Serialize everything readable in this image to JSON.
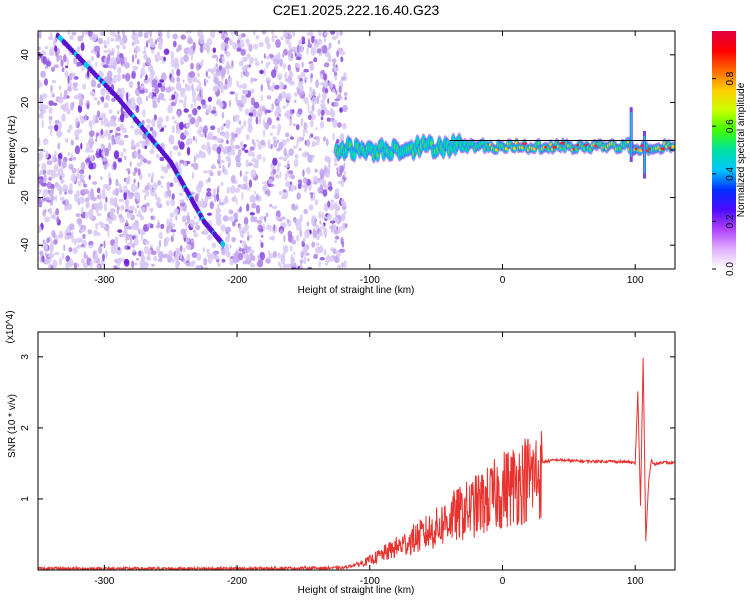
{
  "title": "C2E1.2025.222.16.40.G23",
  "colors": {
    "spectrogram_band": "#6a1bd8",
    "spectrogram_light": "#c9b2ee",
    "snr_line": "#e8322e",
    "colorbar": [
      "#ffffff",
      "#e0b0ff",
      "#b040ff",
      "#4b0aff",
      "#0030ff",
      "#00c8ff",
      "#00e0a0",
      "#40ff00",
      "#c8ff00",
      "#ffd000",
      "#ff6a00",
      "#ff0000",
      "#e00040"
    ]
  },
  "chart_data": [
    {
      "type": "heatmap",
      "xlabel": "Height of straight line (km)",
      "ylabel": "Frequency (Hz)",
      "xlim": [
        -350,
        130
      ],
      "ylim": [
        -50,
        50
      ],
      "xticks": [
        -300,
        -200,
        -100,
        0,
        100
      ],
      "yticks": [
        -40,
        -20,
        0,
        20,
        40
      ],
      "colorbar": {
        "label": "Normalized spectral amplitude",
        "range": [
          0,
          1
        ],
        "ticks": [
          "0.0",
          "0.2",
          "0.4",
          "0.6",
          "0.8"
        ]
      },
      "features": {
        "noise_region_x": [
          -350,
          -118
        ],
        "diagonal_trace": [
          [
            -335,
            48
          ],
          [
            -290,
            22
          ],
          [
            -250,
            -5
          ],
          [
            -225,
            -30
          ],
          [
            -210,
            -40
          ]
        ],
        "signal_band": [
          [
            -125,
            1
          ],
          [
            -100,
            0
          ],
          [
            -70,
            1
          ],
          [
            -40,
            2
          ],
          [
            0,
            1.5
          ],
          [
            50,
            1.5
          ],
          [
            95,
            2
          ],
          [
            100,
            0
          ],
          [
            110,
            1
          ],
          [
            130,
            1.5
          ]
        ],
        "spike_x": [
          97,
          107
        ]
      }
    },
    {
      "type": "line",
      "xlabel": "Height of straight line (km)",
      "ylabel": "SNR (10 * v/v)",
      "y_multiplier": "(x10^4)",
      "xlim": [
        -350,
        130
      ],
      "ylim": [
        0,
        3.35
      ],
      "xticks": [
        -300,
        -200,
        -100,
        0,
        100
      ],
      "yticks": [
        1,
        2,
        3
      ],
      "series": [
        {
          "x": [
            -350,
            -200,
            -120,
            -110,
            -100,
            -90,
            -80,
            -70,
            -60,
            -50,
            -40,
            -30,
            -20,
            -10,
            0,
            10,
            20,
            30,
            40,
            60,
            80,
            95,
            100,
            102,
            104,
            106,
            108,
            110,
            112,
            115,
            120,
            130
          ],
          "y": [
            0.02,
            0.02,
            0.03,
            0.08,
            0.15,
            0.25,
            0.35,
            0.45,
            0.55,
            0.65,
            0.8,
            0.9,
            1.0,
            1.1,
            1.25,
            1.35,
            1.45,
            1.52,
            1.55,
            1.53,
            1.53,
            1.52,
            1.5,
            2.5,
            0.9,
            3.0,
            0.4,
            1.2,
            1.55,
            1.48,
            1.52,
            1.5
          ]
        }
      ]
    }
  ]
}
